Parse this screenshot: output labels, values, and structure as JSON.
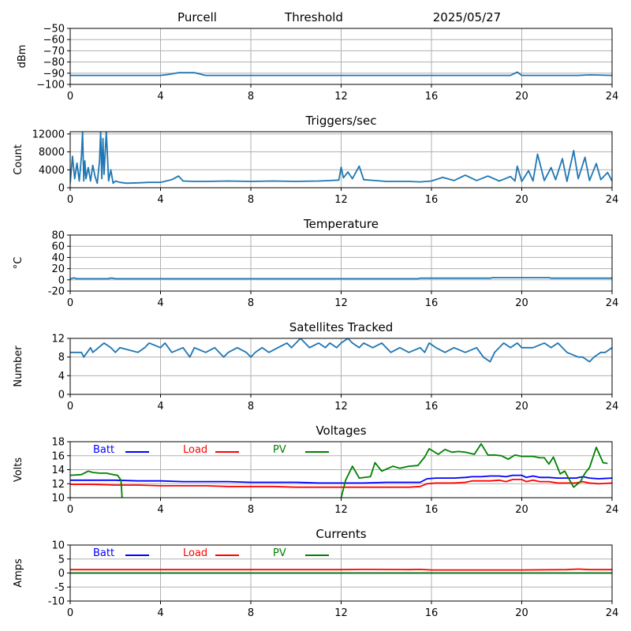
{
  "header": {
    "station": "Purcell",
    "mode": "Threshold",
    "date": "2025/05/27"
  },
  "chart_data": [
    {
      "type": "line",
      "title": "",
      "xlabel": "",
      "ylabel": "dBm",
      "xlim": [
        0,
        24
      ],
      "ylim": [
        -100,
        -50
      ],
      "xticks": [
        0,
        4,
        8,
        12,
        16,
        20,
        24
      ],
      "yticks": [
        -100,
        -90,
        -80,
        -70,
        -60,
        -50
      ],
      "ytick_labels": [
        "−100",
        "−90",
        "−80",
        "−70",
        "−60",
        "−50"
      ],
      "grid": true,
      "series": [
        {
          "name": "",
          "color": "#1f77b4",
          "x": [
            0,
            2,
            4.0,
            4.4,
            4.8,
            5.5,
            5.8,
            6.0,
            10,
            16,
            19.5,
            19.8,
            20.0,
            21,
            22.5,
            23,
            24
          ],
          "y": [
            -92,
            -92,
            -92,
            -91,
            -89.5,
            -89.5,
            -91,
            -92,
            -92,
            -92,
            -92,
            -89,
            -92,
            -92,
            -92,
            -91.5,
            -92
          ]
        }
      ]
    },
    {
      "type": "line",
      "title": "Triggers/sec",
      "xlabel": "",
      "ylabel": "Count",
      "xlim": [
        0,
        24
      ],
      "ylim": [
        0,
        12500
      ],
      "xticks": [
        0,
        4,
        8,
        12,
        16,
        20,
        24
      ],
      "yticks": [
        0,
        4000,
        8000,
        12000
      ],
      "grid": true,
      "series": [
        {
          "name": "",
          "color": "#1f77b4",
          "x": [
            0,
            0.1,
            0.2,
            0.3,
            0.4,
            0.5,
            0.55,
            0.6,
            0.65,
            0.7,
            0.8,
            0.9,
            1.0,
            1.1,
            1.2,
            1.3,
            1.35,
            1.4,
            1.45,
            1.5,
            1.6,
            1.7,
            1.8,
            1.9,
            2.0,
            2.2,
            2.5,
            3.0,
            3.5,
            4.0,
            4.5,
            4.8,
            5.0,
            5.5,
            6.0,
            7.0,
            8.0,
            9.0,
            10.0,
            11.0,
            11.5,
            11.9,
            12.0,
            12.1,
            12.3,
            12.5,
            12.8,
            13.0,
            13.5,
            14.0,
            15.0,
            15.5,
            16.0,
            16.5,
            17.0,
            17.5,
            18.0,
            18.5,
            19.0,
            19.5,
            19.7,
            19.8,
            20.0,
            20.3,
            20.5,
            20.7,
            21.0,
            21.3,
            21.5,
            21.8,
            22.0,
            22.3,
            22.5,
            22.8,
            23.0,
            23.3,
            23.5,
            23.8,
            24.0
          ],
          "y": [
            1000,
            7000,
            2000,
            5500,
            1500,
            7000,
            12500,
            1500,
            6000,
            2000,
            4500,
            1500,
            5000,
            2500,
            1000,
            6000,
            12500,
            2000,
            11000,
            3000,
            12500,
            1500,
            4000,
            1000,
            1500,
            1200,
            1000,
            1100,
            1200,
            1200,
            1800,
            2600,
            1500,
            1400,
            1400,
            1500,
            1400,
            1500,
            1400,
            1500,
            1600,
            1700,
            4600,
            2200,
            3500,
            2000,
            4800,
            1800,
            1600,
            1400,
            1400,
            1300,
            1500,
            2300,
            1600,
            2800,
            1600,
            2600,
            1500,
            2500,
            1500,
            4800,
            1400,
            3800,
            1500,
            7500,
            1600,
            4500,
            1800,
            6500,
            1400,
            8300,
            2000,
            6800,
            1600,
            5400,
            1800,
            3400,
            1500
          ]
        }
      ]
    },
    {
      "type": "line",
      "title": "Temperature",
      "xlabel": "",
      "ylabel": "°C",
      "xlim": [
        0,
        24
      ],
      "ylim": [
        -20,
        80
      ],
      "xticks": [
        0,
        4,
        8,
        12,
        16,
        20,
        24
      ],
      "yticks": [
        -20,
        0,
        20,
        40,
        60,
        80
      ],
      "grid": true,
      "series": [
        {
          "name": "",
          "color": "#1f77b4",
          "x": [
            0,
            0.15,
            0.3,
            1.7,
            1.75,
            1.9,
            2.0,
            15.4,
            15.5,
            18.6,
            18.7,
            21.2,
            21.3,
            24
          ],
          "y": [
            1.5,
            3.5,
            2.0,
            2.0,
            3.0,
            3.0,
            2.0,
            2.0,
            3.0,
            3.0,
            4.0,
            4.0,
            3.0,
            3.0
          ]
        }
      ]
    },
    {
      "type": "line",
      "title": "Satellites Tracked",
      "xlabel": "",
      "ylabel": "Number",
      "xlim": [
        0,
        24
      ],
      "ylim": [
        0,
        12
      ],
      "xticks": [
        0,
        4,
        8,
        12,
        16,
        20,
        24
      ],
      "yticks": [
        0,
        4,
        8,
        12
      ],
      "grid": true,
      "series": [
        {
          "name": "",
          "color": "#1f77b4",
          "x": [
            0,
            0.5,
            0.6,
            0.9,
            1.0,
            1.5,
            1.8,
            2.0,
            2.2,
            3.0,
            3.3,
            3.5,
            4.0,
            4.2,
            4.5,
            5.0,
            5.3,
            5.5,
            6.0,
            6.4,
            6.8,
            7.0,
            7.4,
            7.8,
            8.0,
            8.2,
            8.5,
            8.8,
            9.2,
            9.6,
            9.8,
            10.0,
            10.2,
            10.4,
            10.6,
            11.0,
            11.3,
            11.5,
            11.8,
            12.0,
            12.3,
            12.5,
            12.8,
            13.0,
            13.4,
            13.8,
            14.2,
            14.6,
            15.0,
            15.5,
            15.7,
            15.9,
            16.2,
            16.6,
            17.0,
            17.5,
            18.0,
            18.3,
            18.6,
            18.8,
            19.2,
            19.5,
            19.8,
            20.0,
            20.5,
            21.0,
            21.3,
            21.6,
            22.0,
            22.5,
            22.7,
            23.0,
            23.2,
            23.5,
            23.7,
            24.0
          ],
          "y": [
            9,
            9,
            8,
            10,
            9,
            11,
            10,
            9,
            10,
            9,
            10,
            11,
            10,
            11,
            9,
            10,
            8,
            10,
            9,
            10,
            8,
            9,
            10,
            9,
            8,
            9,
            10,
            9,
            10,
            11,
            10,
            11,
            12,
            11,
            10,
            11,
            10,
            11,
            10,
            11,
            12,
            11,
            10,
            11,
            10,
            11,
            9,
            10,
            9,
            10,
            9,
            11,
            10,
            9,
            10,
            9,
            10,
            8,
            7,
            9,
            11,
            10,
            11,
            10,
            10,
            11,
            10,
            11,
            9,
            8,
            8,
            7,
            8,
            9,
            9,
            10
          ]
        }
      ]
    },
    {
      "type": "line",
      "title": "Voltages",
      "xlabel": "",
      "ylabel": "Volts",
      "xlim": [
        0,
        24
      ],
      "ylim": [
        10,
        18
      ],
      "xticks": [
        0,
        4,
        8,
        12,
        16,
        20,
        24
      ],
      "yticks": [
        10,
        12,
        14,
        16,
        18
      ],
      "grid": true,
      "legend": "top-left",
      "series": [
        {
          "name": "Batt",
          "color": "#0000ff",
          "x": [
            0,
            1,
            2,
            3,
            4,
            5,
            6,
            7,
            8,
            9,
            10,
            11,
            12,
            13,
            14,
            15,
            15.5,
            15.8,
            16.2,
            16.6,
            17,
            17.5,
            17.8,
            18.2,
            18.6,
            19,
            19.3,
            19.6,
            20,
            20.2,
            20.5,
            20.8,
            21.2,
            21.6,
            22,
            22.4,
            22.7,
            23,
            23.4,
            24
          ],
          "y": [
            12.5,
            12.5,
            12.5,
            12.4,
            12.4,
            12.3,
            12.3,
            12.3,
            12.2,
            12.2,
            12.2,
            12.1,
            12.1,
            12.1,
            12.2,
            12.2,
            12.2,
            12.7,
            12.8,
            12.8,
            12.8,
            12.9,
            13.0,
            13.0,
            13.1,
            13.1,
            13.0,
            13.2,
            13.2,
            12.9,
            13.1,
            12.9,
            12.9,
            12.8,
            12.8,
            12.8,
            13.0,
            12.8,
            12.7,
            12.8
          ]
        },
        {
          "name": "Load",
          "color": "#ff0000",
          "x": [
            0,
            1,
            2,
            3,
            4,
            5,
            6,
            7,
            8,
            9,
            10,
            11,
            12,
            13,
            14,
            15,
            15.5,
            15.8,
            16.2,
            16.6,
            17,
            17.5,
            17.8,
            18.2,
            18.6,
            19,
            19.3,
            19.6,
            20,
            20.2,
            20.5,
            20.8,
            21.2,
            21.6,
            22,
            22.4,
            22.7,
            23,
            23.4,
            24
          ],
          "y": [
            11.9,
            11.9,
            11.8,
            11.8,
            11.7,
            11.7,
            11.7,
            11.6,
            11.6,
            11.6,
            11.5,
            11.5,
            11.5,
            11.5,
            11.5,
            11.5,
            11.6,
            12.0,
            12.1,
            12.1,
            12.1,
            12.2,
            12.4,
            12.4,
            12.4,
            12.5,
            12.3,
            12.6,
            12.6,
            12.3,
            12.5,
            12.3,
            12.3,
            12.1,
            12.1,
            12.1,
            12.3,
            12.1,
            12.0,
            12.1
          ]
        },
        {
          "name": "PV",
          "color": "#008000",
          "x": [
            0,
            0.5,
            0.8,
            1.0,
            1.3,
            1.6,
            1.9,
            2.1,
            2.25,
            2.3
          ],
          "y": [
            13.2,
            13.3,
            13.8,
            13.6,
            13.5,
            13.5,
            13.3,
            13.2,
            12.5,
            10.0
          ]
        },
        {
          "name": "",
          "color": "#008000",
          "x": [
            12,
            12.2,
            12.5,
            12.8,
            13.3,
            13.5,
            13.8,
            14.3,
            14.6,
            15.0,
            15.4,
            15.7,
            15.9,
            16.3,
            16.6,
            16.9,
            17.2,
            17.5,
            17.9,
            18.2,
            18.5,
            18.8,
            19.1,
            19.4,
            19.7,
            20.0,
            20.3,
            20.5,
            20.8,
            21.0,
            21.2,
            21.4,
            21.7,
            21.9,
            22.3,
            22.6,
            22.8,
            23.0,
            23.3,
            23.6,
            23.8
          ],
          "y": [
            10.0,
            12.5,
            14.5,
            12.8,
            13.0,
            15.0,
            13.8,
            14.5,
            14.2,
            14.5,
            14.6,
            15.8,
            17.0,
            16.2,
            16.9,
            16.5,
            16.6,
            16.5,
            16.2,
            17.7,
            16.1,
            16.1,
            16.0,
            15.5,
            16.1,
            15.9,
            15.9,
            15.9,
            15.7,
            15.7,
            14.8,
            15.8,
            13.4,
            13.8,
            11.5,
            12.3,
            13.5,
            14.3,
            17.2,
            15.0,
            14.9
          ]
        }
      ]
    },
    {
      "type": "line",
      "title": "Currents",
      "xlabel": "",
      "ylabel": "Amps",
      "xlim": [
        0,
        24
      ],
      "ylim": [
        -10,
        10
      ],
      "xticks": [
        0,
        4,
        8,
        12,
        16,
        20,
        24
      ],
      "yticks": [
        -10,
        -5,
        0,
        5,
        10
      ],
      "grid": true,
      "legend": "top-left",
      "series": [
        {
          "name": "Batt",
          "color": "#0000ff",
          "x": [
            0,
            24
          ],
          "y": [
            0.0,
            0.0
          ]
        },
        {
          "name": "Load",
          "color": "#ff0000",
          "x": [
            0,
            4,
            8,
            12,
            13,
            15,
            15.5,
            16,
            20,
            22,
            22.5,
            23,
            24
          ],
          "y": [
            1.2,
            1.2,
            1.2,
            1.2,
            1.3,
            1.2,
            1.3,
            1.1,
            1.1,
            1.2,
            1.4,
            1.2,
            1.2
          ]
        },
        {
          "name": "PV",
          "color": "#008000",
          "x": [
            0,
            24
          ],
          "y": [
            0.0,
            0.0
          ]
        }
      ]
    }
  ]
}
